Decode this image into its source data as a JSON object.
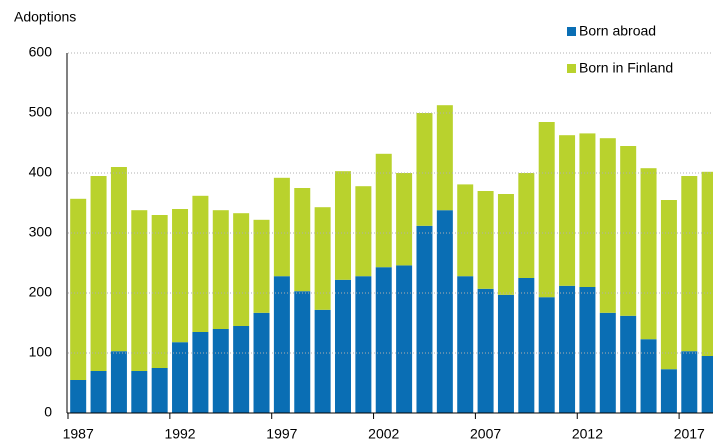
{
  "chart_data": {
    "type": "stacked-bar",
    "y_label": "Adoptions",
    "categories": [
      "1987",
      null,
      null,
      null,
      null,
      "1992",
      null,
      null,
      null,
      null,
      "1997",
      null,
      null,
      null,
      null,
      "2002",
      null,
      null,
      null,
      null,
      "2007",
      null,
      null,
      null,
      null,
      "2012",
      null,
      null,
      null,
      null,
      "2017",
      null
    ],
    "series": [
      {
        "name": "Born abroad",
        "color": "#0a6eb4",
        "values": [
          55,
          70,
          103,
          70,
          75,
          118,
          135,
          140,
          145,
          167,
          228,
          203,
          172,
          222,
          228,
          243,
          246,
          312,
          338,
          228,
          207,
          197,
          225,
          193,
          212,
          210,
          167,
          162,
          123,
          73,
          103,
          95
        ]
      },
      {
        "name": "Born in Finland",
        "color": "#b9d22d",
        "values": [
          302,
          325,
          307,
          268,
          255,
          222,
          227,
          198,
          188,
          155,
          164,
          172,
          171,
          181,
          150,
          189,
          154,
          188,
          175,
          153,
          163,
          168,
          175,
          292,
          251,
          256,
          291,
          283,
          285,
          282,
          292,
          307
        ]
      }
    ],
    "ylim": [
      0,
      600
    ],
    "yticks": [
      0,
      100,
      200,
      300,
      400,
      500,
      600
    ],
    "grid": true,
    "legend": "top-right"
  }
}
